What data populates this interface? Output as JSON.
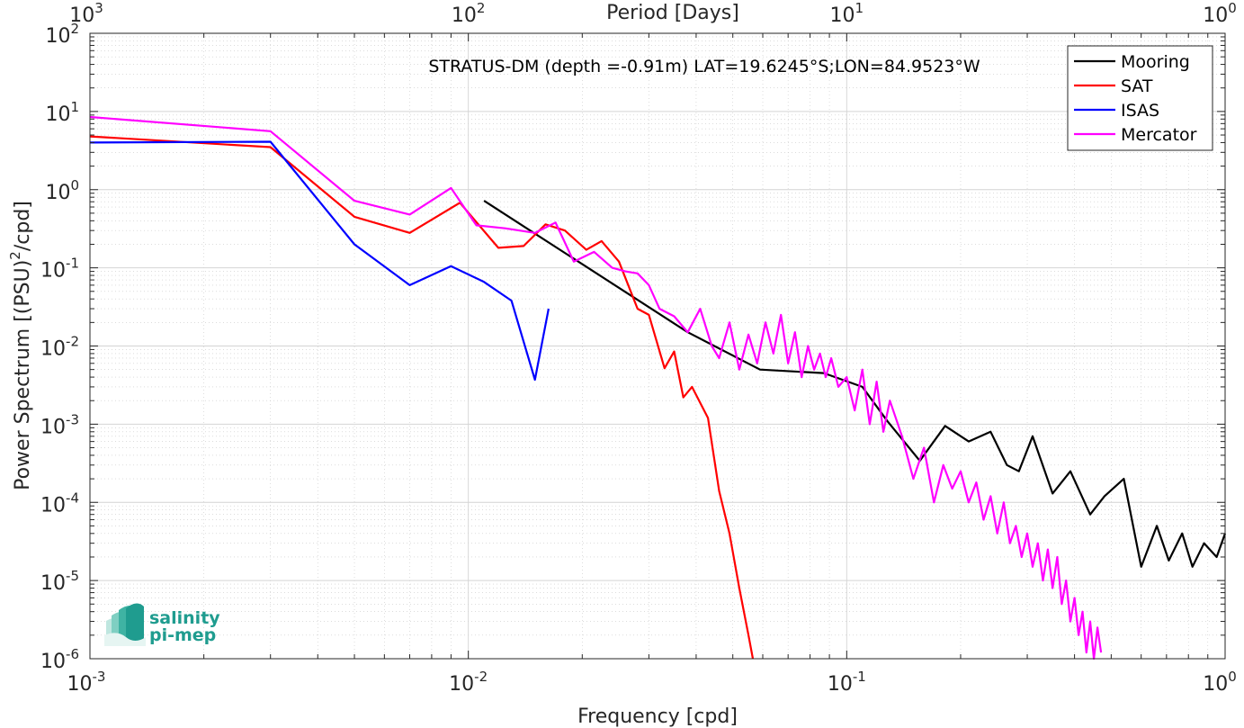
{
  "chart_data": {
    "type": "line",
    "title": "STRATUS-DM (depth =-0.91m) LAT=19.6245°S;LON=84.9523°W",
    "xlabel": "Frequency [cpd]",
    "ylabel": "Power Spectrum [(PSU)²/cpd]",
    "x2label": "Period [Days]",
    "xscale": "log",
    "yscale": "log",
    "xlim": [
      0.001,
      1
    ],
    "ylim": [
      1e-06,
      100
    ],
    "grid": true,
    "legend_position": "top-right",
    "x_ticks": [
      0.001,
      0.01,
      0.1,
      1
    ],
    "x_tick_labels": [
      {
        "base": "10",
        "exp": "-3"
      },
      {
        "base": "10",
        "exp": "-2"
      },
      {
        "base": "10",
        "exp": "-1"
      },
      {
        "base": "10",
        "exp": "0"
      }
    ],
    "x2_tick_labels": [
      {
        "base": "10",
        "exp": "3"
      },
      {
        "base": "10",
        "exp": "2"
      },
      {
        "base": "10",
        "exp": "1"
      },
      {
        "base": "10",
        "exp": "0"
      }
    ],
    "y_ticks": [
      1e-06,
      1e-05,
      0.0001,
      0.001,
      0.01,
      0.1,
      1,
      10,
      100
    ],
    "y_tick_labels": [
      {
        "base": "10",
        "exp": "-6"
      },
      {
        "base": "10",
        "exp": "-5"
      },
      {
        "base": "10",
        "exp": "-4"
      },
      {
        "base": "10",
        "exp": "-3"
      },
      {
        "base": "10",
        "exp": "-2"
      },
      {
        "base": "10",
        "exp": "-1"
      },
      {
        "base": "10",
        "exp": "0"
      },
      {
        "base": "10",
        "exp": "1"
      },
      {
        "base": "10",
        "exp": "2"
      }
    ],
    "series": [
      {
        "name": "Mooring",
        "color": "#000000",
        "x": [
          0.011,
          0.038,
          0.059,
          0.087,
          0.11,
          0.128,
          0.156,
          0.182,
          0.21,
          0.24,
          0.265,
          0.285,
          0.31,
          0.35,
          0.39,
          0.44,
          0.48,
          0.54,
          0.6,
          0.66,
          0.71,
          0.77,
          0.82,
          0.88,
          0.95,
          1.0
        ],
        "y": [
          0.72,
          0.015,
          0.005,
          0.0045,
          0.003,
          0.0011,
          0.00034,
          0.00095,
          0.0006,
          0.0008,
          0.0003,
          0.00025,
          0.0007,
          0.00013,
          0.00025,
          7e-05,
          0.00012,
          0.0002,
          1.5e-05,
          5e-05,
          1.8e-05,
          4e-05,
          1.5e-05,
          3e-05,
          2e-05,
          4e-05
        ]
      },
      {
        "name": "SAT",
        "color": "#ff0000",
        "x": [
          0.001,
          0.003,
          0.005,
          0.007,
          0.0095,
          0.012,
          0.014,
          0.016,
          0.018,
          0.0205,
          0.0225,
          0.025,
          0.028,
          0.03,
          0.033,
          0.035,
          0.037,
          0.039,
          0.043,
          0.046,
          0.049,
          0.052,
          0.055,
          0.0565
        ],
        "y": [
          4.8,
          3.5,
          0.45,
          0.28,
          0.68,
          0.18,
          0.19,
          0.36,
          0.3,
          0.17,
          0.22,
          0.12,
          0.03,
          0.025,
          0.0052,
          0.0085,
          0.0022,
          0.003,
          0.0012,
          0.00014,
          4e-05,
          8e-06,
          2e-06,
          1e-06
        ]
      },
      {
        "name": "ISAS",
        "color": "#0000ff",
        "x": [
          0.001,
          0.003,
          0.005,
          0.007,
          0.009,
          0.011,
          0.013,
          0.015,
          0.0163
        ],
        "y": [
          4.0,
          4.1,
          0.2,
          0.06,
          0.105,
          0.066,
          0.038,
          0.0037,
          0.03
        ]
      },
      {
        "name": "Mercator",
        "color": "#ff00ff",
        "x": [
          0.001,
          0.003,
          0.005,
          0.007,
          0.009,
          0.0105,
          0.0125,
          0.015,
          0.017,
          0.019,
          0.0215,
          0.024,
          0.026,
          0.028,
          0.03,
          0.032,
          0.035,
          0.038,
          0.041,
          0.044,
          0.046,
          0.049,
          0.052,
          0.055,
          0.058,
          0.061,
          0.064,
          0.067,
          0.07,
          0.073,
          0.076,
          0.079,
          0.082,
          0.085,
          0.088,
          0.091,
          0.095,
          0.1,
          0.105,
          0.11,
          0.115,
          0.12,
          0.125,
          0.13,
          0.14,
          0.15,
          0.16,
          0.17,
          0.18,
          0.19,
          0.2,
          0.21,
          0.22,
          0.23,
          0.24,
          0.25,
          0.26,
          0.27,
          0.28,
          0.29,
          0.3,
          0.31,
          0.32,
          0.33,
          0.34,
          0.35,
          0.36,
          0.37,
          0.38,
          0.39,
          0.4,
          0.41,
          0.42,
          0.43,
          0.44,
          0.45,
          0.46,
          0.47
        ],
        "y": [
          8.5,
          5.6,
          0.72,
          0.48,
          1.05,
          0.35,
          0.32,
          0.28,
          0.38,
          0.12,
          0.16,
          0.1,
          0.09,
          0.085,
          0.06,
          0.03,
          0.024,
          0.015,
          0.03,
          0.01,
          0.007,
          0.02,
          0.005,
          0.014,
          0.006,
          0.02,
          0.008,
          0.025,
          0.006,
          0.015,
          0.004,
          0.01,
          0.005,
          0.008,
          0.004,
          0.007,
          0.003,
          0.004,
          0.0015,
          0.005,
          0.001,
          0.0035,
          0.0008,
          0.002,
          0.0007,
          0.0002,
          0.0005,
          0.0001,
          0.0003,
          0.00015,
          0.00025,
          0.0001,
          0.00018,
          6e-05,
          0.00012,
          4e-05,
          0.0001,
          3e-05,
          5e-05,
          2e-05,
          4e-05,
          1.5e-05,
          3e-05,
          1e-05,
          2.5e-05,
          8e-06,
          2e-05,
          5e-06,
          1e-05,
          3e-06,
          6e-06,
          2e-06,
          4e-06,
          1.2e-06,
          3e-06,
          1e-06,
          2.5e-06,
          1.2e-06
        ]
      }
    ]
  },
  "logo": {
    "line1": "salinity",
    "line2": "pi-mep"
  }
}
